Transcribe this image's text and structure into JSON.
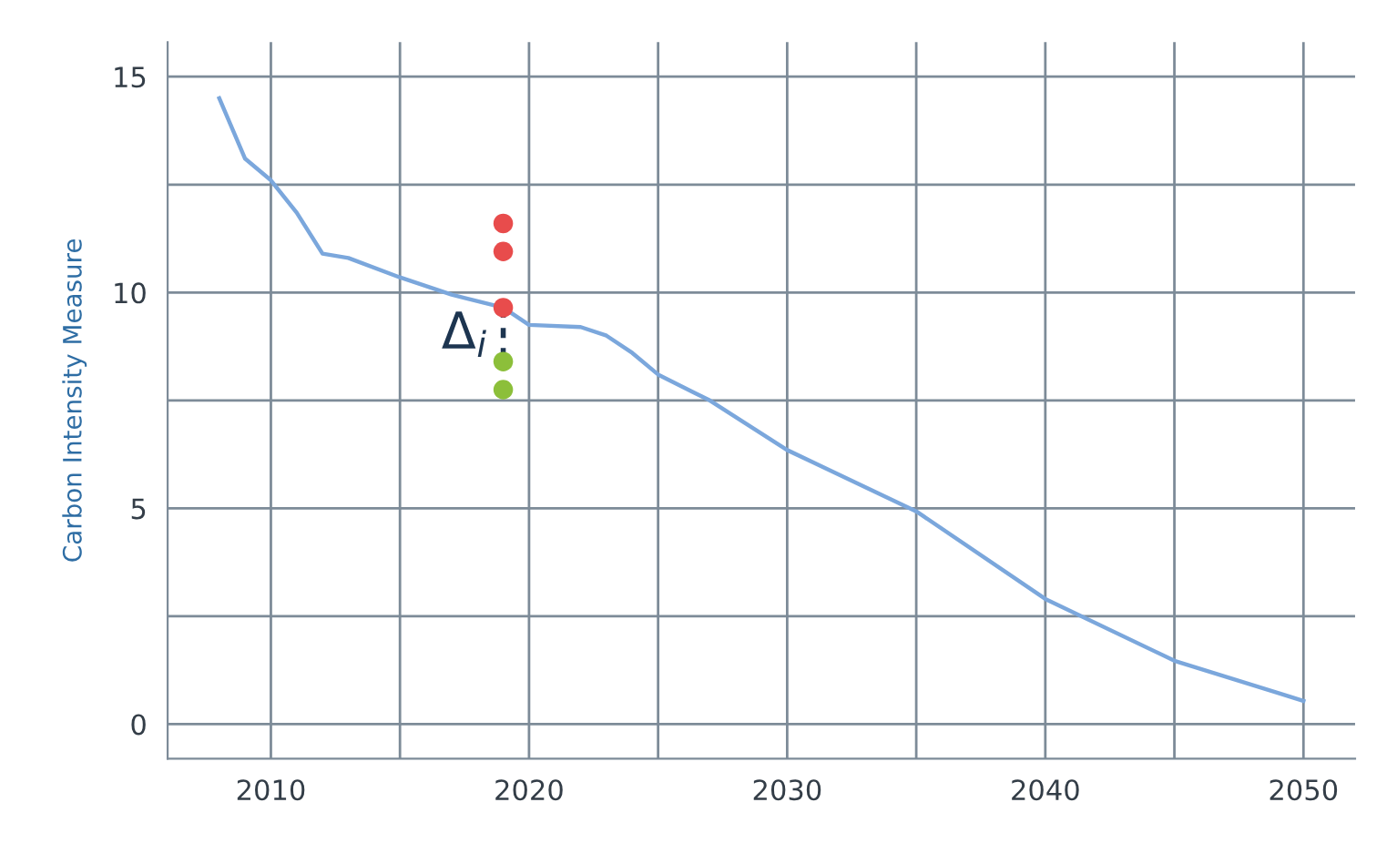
{
  "chart_data": {
    "type": "line",
    "ylabel": "Carbon Intensity Measure",
    "xlim": [
      2006,
      2052
    ],
    "xticks": [
      2010,
      {
        "value": 2015,
        "label": null
      },
      2020,
      {
        "value": 2025,
        "label": null
      },
      2030,
      {
        "value": 2035,
        "label": null
      },
      2040,
      {
        "value": 2045,
        "label": null
      },
      2050
    ],
    "ylim": [
      -0.8,
      15.8
    ],
    "yticks": [
      0,
      {
        "value": 2.5,
        "label": null
      },
      5,
      {
        "value": 7.5,
        "label": null
      },
      10,
      {
        "value": 12.5,
        "label": null
      },
      15
    ],
    "grid": true,
    "annotations": [
      "Δ$_{i}$"
    ],
    "series": [
      {
        "color": "#7ba7dc",
        "marker": "none",
        "line_style": "solid",
        "x": [
          2008,
          2009,
          2010,
          2011,
          2012,
          2013,
          2015,
          2017,
          2019,
          2020,
          2022,
          2023,
          2024,
          2025,
          2027,
          2030,
          2035,
          2040,
          2045,
          2050
        ],
        "values": [
          14.5,
          13.1,
          12.6,
          11.85,
          10.9,
          10.8,
          10.35,
          9.95,
          9.65,
          9.25,
          9.2,
          9.0,
          8.6,
          8.1,
          7.5,
          6.35,
          4.93,
          2.9,
          1.47,
          0.54
        ]
      },
      {
        "type": "scatter",
        "color": "#e84c4c",
        "marker": "circle",
        "x": [
          2019,
          2019,
          2019
        ],
        "values": [
          11.6,
          10.95,
          9.65
        ]
      },
      {
        "type": "scatter",
        "color": "#8cbf3a",
        "marker": "circle",
        "x": [
          2019,
          2019
        ],
        "values": [
          8.4,
          7.75
        ]
      }
    ]
  }
}
